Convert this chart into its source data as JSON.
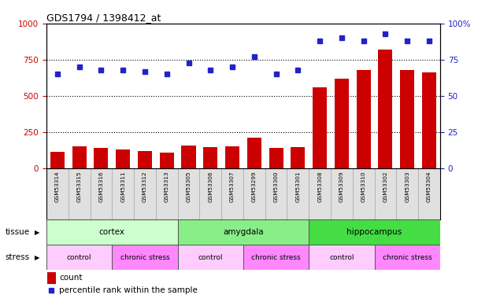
{
  "title": "GDS1794 / 1398412_at",
  "samples": [
    "GSM53314",
    "GSM53315",
    "GSM53316",
    "GSM53311",
    "GSM53312",
    "GSM53313",
    "GSM53305",
    "GSM53306",
    "GSM53307",
    "GSM53299",
    "GSM53300",
    "GSM53301",
    "GSM53308",
    "GSM53309",
    "GSM53310",
    "GSM53302",
    "GSM53303",
    "GSM53304"
  ],
  "counts": [
    115,
    150,
    140,
    130,
    120,
    110,
    155,
    145,
    150,
    210,
    140,
    145,
    560,
    620,
    680,
    820,
    680,
    660
  ],
  "percentiles": [
    65,
    70,
    68,
    68,
    67,
    65,
    73,
    68,
    70,
    77,
    65,
    68,
    88,
    90,
    88,
    93,
    88,
    88
  ],
  "ylim_left": [
    0,
    1000
  ],
  "ylim_right": [
    0,
    100
  ],
  "yticks_left": [
    0,
    250,
    500,
    750,
    1000
  ],
  "yticks_right": [
    0,
    25,
    50,
    75,
    100
  ],
  "bar_color": "#cc0000",
  "dot_color": "#2222cc",
  "tissue_groups": [
    {
      "label": "cortex",
      "start": 0,
      "end": 6,
      "color": "#ccffcc"
    },
    {
      "label": "amygdala",
      "start": 6,
      "end": 12,
      "color": "#88ee88"
    },
    {
      "label": "hippocampus",
      "start": 12,
      "end": 18,
      "color": "#44dd44"
    }
  ],
  "stress_groups": [
    {
      "label": "control",
      "start": 0,
      "end": 3,
      "color": "#ffccff"
    },
    {
      "label": "chronic stress",
      "start": 3,
      "end": 6,
      "color": "#ff88ff"
    },
    {
      "label": "control",
      "start": 6,
      "end": 9,
      "color": "#ffccff"
    },
    {
      "label": "chronic stress",
      "start": 9,
      "end": 12,
      "color": "#ff88ff"
    },
    {
      "label": "control",
      "start": 12,
      "end": 15,
      "color": "#ffccff"
    },
    {
      "label": "chronic stress",
      "start": 15,
      "end": 18,
      "color": "#ff88ff"
    }
  ],
  "legend_count_color": "#cc0000",
  "legend_pct_color": "#2222cc",
  "tick_label_color_left": "#cc0000",
  "tick_label_color_right": "#2222cc"
}
